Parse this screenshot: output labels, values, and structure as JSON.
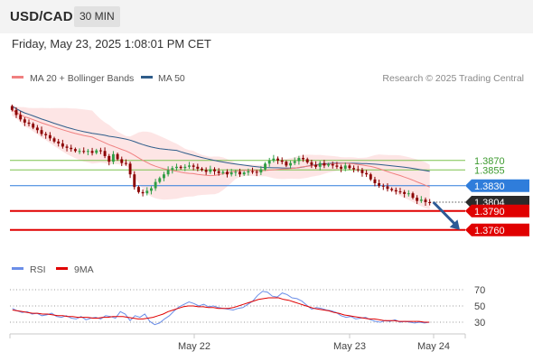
{
  "header": {
    "pair": "USD/CAD",
    "timeframe": "30 MIN",
    "timestamp": "Friday, May 23, 2025 1:08:01 PM CET"
  },
  "legend": {
    "ma20": "MA 20 + Bollinger Bands",
    "ma50": "MA 50",
    "credit": "Research © 2025 Trading Central",
    "rsi": "RSI",
    "rsi_ma": "9MA"
  },
  "colors": {
    "ma20": "#f08080",
    "ma50": "#2f5d8a",
    "bands": "#fde0e0",
    "up": "#2f9e44",
    "down": "#8b0000",
    "resistance": "#7cc24e",
    "pivot": "#2f7ddb",
    "support": "#e00000",
    "last": "#2a2a2a",
    "rsi": "#6b8ee8",
    "rsi_ma": "#e00000"
  },
  "chart_data": [
    {
      "type": "candlestick",
      "x_tick_labels": [
        "May 22",
        "May 23",
        "May 24"
      ],
      "price_levels": [
        {
          "label": "1.3870",
          "value": 1.387,
          "kind": "resistance"
        },
        {
          "label": "1.3855",
          "value": 1.3855,
          "kind": "resistance"
        },
        {
          "label": "1.3830",
          "value": 1.383,
          "kind": "pivot"
        },
        {
          "label": "1.3804",
          "value": 1.3804,
          "kind": "last"
        },
        {
          "label": "1.3790",
          "value": 1.379,
          "kind": "support"
        },
        {
          "label": "1.3760",
          "value": 1.376,
          "kind": "support"
        }
      ],
      "ylim": [
        1.3724,
        1.3974
      ],
      "close": [
        1.395,
        1.3942,
        1.3935,
        1.393,
        1.3928,
        1.3922,
        1.3918,
        1.3912,
        1.391,
        1.3905,
        1.39,
        1.3897,
        1.3892,
        1.389,
        1.3888,
        1.3885,
        1.3885,
        1.3884,
        1.3885,
        1.3882,
        1.3886,
        1.3885,
        1.3877,
        1.3868,
        1.388,
        1.3872,
        1.3866,
        1.3865,
        1.3848,
        1.3828,
        1.382,
        1.3818,
        1.3822,
        1.3826,
        1.3836,
        1.3842,
        1.3848,
        1.3855,
        1.3858,
        1.386,
        1.3858,
        1.386,
        1.3862,
        1.386,
        1.3857,
        1.3855,
        1.3852,
        1.3856,
        1.3853,
        1.385,
        1.3852,
        1.3848,
        1.3851,
        1.3852,
        1.3848,
        1.3851,
        1.3853,
        1.3852,
        1.3851,
        1.3856,
        1.3865,
        1.387,
        1.3873,
        1.387,
        1.3868,
        1.3862,
        1.3866,
        1.3869,
        1.3874,
        1.3872,
        1.3867,
        1.3863,
        1.386,
        1.3866,
        1.3862,
        1.3864,
        1.3862,
        1.386,
        1.3857,
        1.3862,
        1.3858,
        1.3856,
        1.3855,
        1.385,
        1.3848,
        1.384,
        1.3834,
        1.383,
        1.3829,
        1.3825,
        1.3823,
        1.3821,
        1.382,
        1.3817,
        1.3818,
        1.3811,
        1.3806,
        1.3808,
        1.3804,
        1.3803
      ],
      "projection": {
        "from": 1.3804,
        "to": 1.376
      }
    },
    {
      "type": "line",
      "title": "RSI",
      "y_tick_labels": [
        "70",
        "50",
        "30"
      ],
      "ylim": [
        20,
        80
      ],
      "series": [
        {
          "name": "RSI",
          "values": [
            47,
            44,
            42,
            43,
            40,
            41,
            38,
            39,
            41,
            37,
            36,
            38,
            35,
            34,
            37,
            33,
            35,
            36,
            34,
            38,
            37,
            35,
            43,
            40,
            32,
            38,
            36,
            40,
            31,
            27,
            29,
            34,
            38,
            44,
            49,
            52,
            55,
            53,
            50,
            52,
            49,
            50,
            48,
            47,
            46,
            45,
            47,
            48,
            52,
            56,
            63,
            68,
            67,
            62,
            61,
            66,
            64,
            60,
            59,
            56,
            51,
            46,
            48,
            47,
            45,
            44,
            42,
            38,
            36,
            37,
            34,
            35,
            36,
            33,
            31,
            30,
            32,
            31,
            33,
            30,
            31,
            30,
            29,
            30,
            29,
            30
          ]
        },
        {
          "name": "9MA",
          "values": [
            45,
            44,
            43,
            42,
            41,
            41,
            40,
            40,
            39,
            38,
            38,
            37,
            37,
            36,
            36,
            36,
            35,
            35,
            36,
            36,
            37,
            37,
            37,
            36,
            35,
            34,
            34,
            35,
            36,
            38,
            40,
            43,
            45,
            47,
            49,
            50,
            50,
            49,
            49,
            48,
            48,
            47,
            47,
            47,
            48,
            50,
            52,
            54,
            56,
            58,
            59,
            60,
            60,
            60,
            58,
            57,
            55,
            53,
            51,
            49,
            47,
            46,
            45,
            44,
            42,
            41,
            39,
            38,
            37,
            36,
            35,
            34,
            34,
            33,
            32,
            32,
            32,
            31,
            31,
            31,
            31,
            31,
            30,
            30
          ]
        }
      ]
    }
  ]
}
